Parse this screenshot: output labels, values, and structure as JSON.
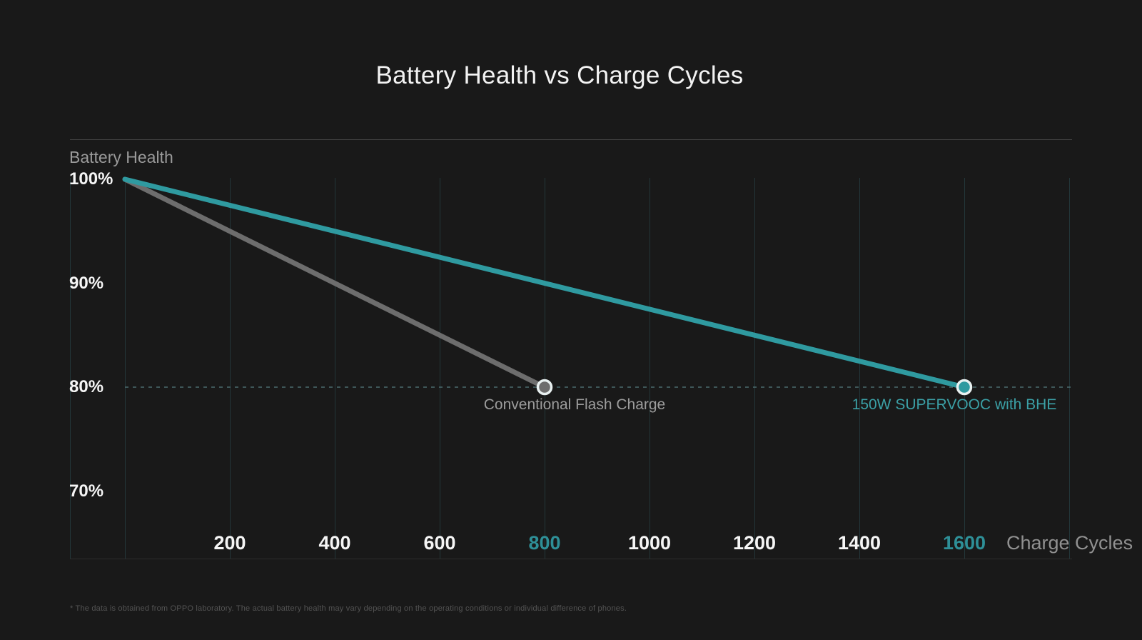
{
  "page": {
    "footnote": "* The data is obtained from OPPO laboratory. The actual battery health may vary depending on the operating conditions or individual difference of phones."
  },
  "chart_data": {
    "type": "line",
    "title": "Battery Health vs Charge Cycles",
    "xlabel": "Charge Cycles",
    "ylabel": "Battery Health",
    "xlim": [
      0,
      1800
    ],
    "ylim": [
      67,
      103
    ],
    "grid": "vertical",
    "x_ticks": [
      {
        "label": "200",
        "value": 200,
        "accent": false
      },
      {
        "label": "400",
        "value": 400,
        "accent": false
      },
      {
        "label": "600",
        "value": 600,
        "accent": false
      },
      {
        "label": "800",
        "value": 800,
        "accent": true
      },
      {
        "label": "1000",
        "value": 1000,
        "accent": false
      },
      {
        "label": "1200",
        "value": 1200,
        "accent": false
      },
      {
        "label": "1400",
        "value": 1400,
        "accent": false
      },
      {
        "label": "1600",
        "value": 1600,
        "accent": true
      }
    ],
    "y_ticks": [
      {
        "label": "100%",
        "value": 100
      },
      {
        "label": "90%",
        "value": 90
      },
      {
        "label": "80%",
        "value": 80
      },
      {
        "label": "70%",
        "value": 70
      }
    ],
    "reference_line": {
      "y": 80,
      "style": "dashed"
    },
    "series": [
      {
        "name": "Conventional Flash Charge",
        "points": [
          {
            "x": 0,
            "y": 100
          },
          {
            "x": 800,
            "y": 80
          }
        ],
        "line_color": "#6d6d6d",
        "label_color": "#9c9c9c",
        "endpoint_marker": true
      },
      {
        "name": "150W SUPERVOOC with BHE",
        "points": [
          {
            "x": 0,
            "y": 100
          },
          {
            "x": 1600,
            "y": 80
          }
        ],
        "line_color": "#2f9aa0",
        "label_color": "#3ba0a6",
        "endpoint_marker": true
      }
    ],
    "colors": {
      "background": "#191919",
      "title": "#f2f2f2",
      "tick": "#f5f5f5",
      "tick_accent": "#2e8f97",
      "axis_title": "#9a9a9a",
      "gridline": "#233639",
      "reference_dash": "#4a6a6e",
      "plot_border": "#424242",
      "marker_ring": "#e8f0f0",
      "footnote": "#535353"
    }
  }
}
